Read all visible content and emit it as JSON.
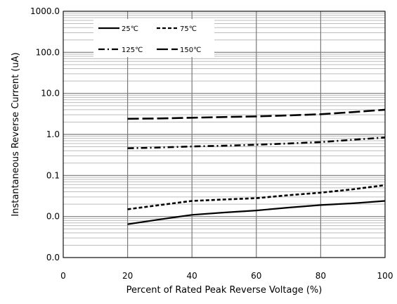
{
  "chart_data": {
    "type": "line",
    "title": "",
    "xlabel": "Percent of  Rated Peak Reverse Voltage (%)",
    "ylabel": "Instantaneous Reverse Current (uA)",
    "xlim": [
      0,
      100
    ],
    "ylim": [
      0.001,
      1000
    ],
    "yscale": "log",
    "x_ticks": [
      0,
      20,
      40,
      60,
      80,
      100
    ],
    "x_tick_labels": [
      "0",
      "20",
      "40",
      "60",
      "80",
      "100"
    ],
    "y_ticks": [
      0.001,
      0.01,
      0.1,
      1,
      10,
      100,
      1000
    ],
    "y_tick_labels": [
      "0.0",
      "0.0",
      "0.1",
      "1.0",
      "10.0",
      "100.0",
      "1000.0"
    ],
    "grid": true,
    "legend_position": "top-left",
    "series": [
      {
        "name": "25℃",
        "line_style": "solid",
        "x": [
          20,
          30,
          40,
          50,
          60,
          70,
          80,
          90,
          100
        ],
        "y": [
          0.0065,
          0.0085,
          0.011,
          0.0125,
          0.014,
          0.0165,
          0.019,
          0.021,
          0.024
        ]
      },
      {
        "name": "75℃",
        "line_style": "short-dash",
        "x": [
          20,
          30,
          40,
          50,
          60,
          70,
          80,
          90,
          100
        ],
        "y": [
          0.015,
          0.019,
          0.024,
          0.026,
          0.028,
          0.033,
          0.038,
          0.046,
          0.058
        ]
      },
      {
        "name": "125℃",
        "line_style": "dash-dot",
        "x": [
          20,
          30,
          40,
          50,
          60,
          70,
          80,
          90,
          100
        ],
        "y": [
          0.46,
          0.48,
          0.51,
          0.53,
          0.56,
          0.6,
          0.65,
          0.74,
          0.84
        ]
      },
      {
        "name": "150℃",
        "line_style": "long-dash",
        "x": [
          20,
          30,
          40,
          50,
          60,
          70,
          80,
          90,
          100
        ],
        "y": [
          2.4,
          2.45,
          2.55,
          2.65,
          2.75,
          2.9,
          3.1,
          3.5,
          4.0
        ]
      }
    ]
  }
}
